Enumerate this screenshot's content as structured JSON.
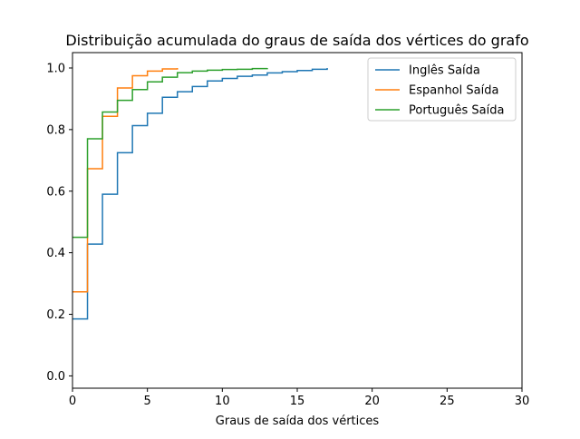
{
  "chart_data": {
    "type": "line",
    "title": "Distribuição acumulada do graus de saída dos vértices do grafo",
    "xlabel": "Graus de saída dos vértices",
    "ylabel": "",
    "xlim": [
      0,
      30
    ],
    "ylim": [
      -0.04,
      1.05
    ],
    "xticks": [
      0,
      5,
      10,
      15,
      20,
      25,
      30
    ],
    "yticks": [
      0.0,
      0.2,
      0.4,
      0.6,
      0.8,
      1.0
    ],
    "xtick_labels": [
      "0",
      "5",
      "10",
      "15",
      "20",
      "25",
      "30"
    ],
    "ytick_labels": [
      "0.0",
      "0.2",
      "0.4",
      "0.6",
      "0.8",
      "1.0"
    ],
    "grid": false,
    "legend_position": "top-right",
    "series": [
      {
        "name": "Inglês Saída",
        "color": "#1f77b4",
        "step": "post",
        "x": [
          0,
          1,
          2,
          3,
          4,
          5,
          6,
          7,
          8,
          9,
          10,
          11,
          12,
          13,
          14,
          15,
          16,
          17
        ],
        "y": [
          0.185,
          0.428,
          0.59,
          0.725,
          0.813,
          0.853,
          0.905,
          0.923,
          0.94,
          0.958,
          0.966,
          0.973,
          0.977,
          0.984,
          0.988,
          0.992,
          0.996,
          1.0
        ]
      },
      {
        "name": "Espanhol Saída",
        "color": "#ff7f0e",
        "step": "post",
        "x": [
          0,
          1,
          2,
          3,
          4,
          5,
          6,
          7
        ],
        "y": [
          0.273,
          0.673,
          0.843,
          0.935,
          0.975,
          0.99,
          0.997,
          1.0
        ]
      },
      {
        "name": "Português Saída",
        "color": "#2ca02c",
        "step": "post",
        "x": [
          0,
          1,
          2,
          3,
          4,
          5,
          6,
          7,
          8,
          9,
          10,
          11,
          12,
          13
        ],
        "y": [
          0.45,
          0.77,
          0.857,
          0.895,
          0.93,
          0.955,
          0.97,
          0.985,
          0.99,
          0.993,
          0.995,
          0.996,
          0.998,
          1.0
        ]
      }
    ]
  }
}
